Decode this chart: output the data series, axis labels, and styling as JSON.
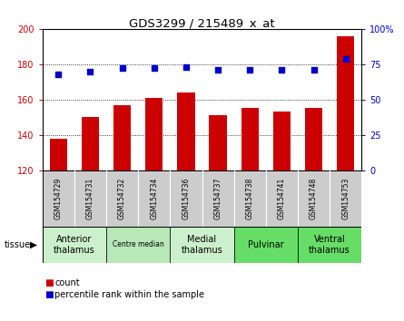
{
  "title": "GDS3299 / 215489_x_at",
  "samples": [
    "GSM154729",
    "GSM154731",
    "GSM154732",
    "GSM154734",
    "GSM154736",
    "GSM154737",
    "GSM154738",
    "GSM154741",
    "GSM154748",
    "GSM154753"
  ],
  "counts": [
    138,
    150,
    157,
    161,
    164,
    151,
    155,
    153,
    155,
    196
  ],
  "percentiles": [
    68,
    70,
    72,
    72,
    73,
    71,
    71,
    71,
    71,
    79
  ],
  "ylim_left": [
    120,
    200
  ],
  "ylim_right": [
    0,
    100
  ],
  "yticks_left": [
    120,
    140,
    160,
    180,
    200
  ],
  "yticks_right": [
    0,
    25,
    50,
    75,
    100
  ],
  "bar_color": "#cc0000",
  "scatter_color": "#0000cc",
  "tissue_groups": [
    {
      "label": "Anterior\nthalamus",
      "start": 0,
      "end": 2,
      "color": "#ccf0cc",
      "fontsize": 7
    },
    {
      "label": "Centre median",
      "start": 2,
      "end": 4,
      "color": "#b8e8b8",
      "fontsize": 5.5
    },
    {
      "label": "Medial\nthalamus",
      "start": 4,
      "end": 6,
      "color": "#ccf0cc",
      "fontsize": 7
    },
    {
      "label": "Pulvinar",
      "start": 6,
      "end": 8,
      "color": "#66dd66",
      "fontsize": 7
    },
    {
      "label": "Ventral\nthalamus",
      "start": 8,
      "end": 10,
      "color": "#66dd66",
      "fontsize": 7
    }
  ],
  "tissue_label": "tissue",
  "legend_count_label": "count",
  "legend_pct_label": "percentile rank within the sample",
  "sample_bg_color": "#cccccc",
  "background_color": "#ffffff"
}
